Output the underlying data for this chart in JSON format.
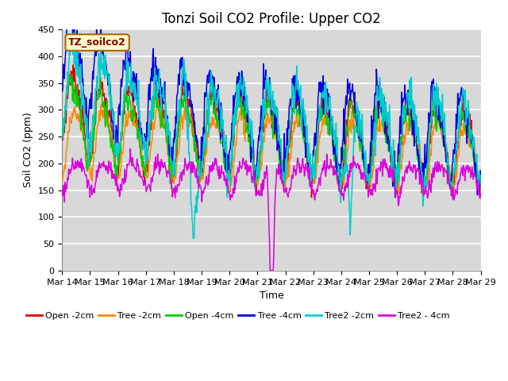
{
  "title": "Tonzi Soil CO2 Profile: Upper CO2",
  "xlabel": "Time",
  "ylabel": "Soil CO2 (ppm)",
  "ylim": [
    0,
    450
  ],
  "yticks": [
    0,
    50,
    100,
    150,
    200,
    250,
    300,
    350,
    400,
    450
  ],
  "xtick_labels": [
    "Mar 14",
    "Mar 15",
    "Mar 16",
    "Mar 17",
    "Mar 18",
    "Mar 19",
    "Mar 20",
    "Mar 21",
    "Mar 22",
    "Mar 23",
    "Mar 24",
    "Mar 25",
    "Mar 26",
    "Mar 27",
    "Mar 28",
    "Mar 29"
  ],
  "legend_label": "TZ_soilco2",
  "series_colors": {
    "Open -2cm": "#dd0000",
    "Tree -2cm": "#ff8800",
    "Open -4cm": "#00cc00",
    "Tree -4cm": "#0000dd",
    "Tree2 -2cm": "#00cccc",
    "Tree2 - 4cm": "#dd00dd"
  },
  "background_color": "#d8d8d8",
  "grid_color": "#ffffff",
  "title_fontsize": 12,
  "axis_fontsize": 9,
  "tick_fontsize": 8
}
